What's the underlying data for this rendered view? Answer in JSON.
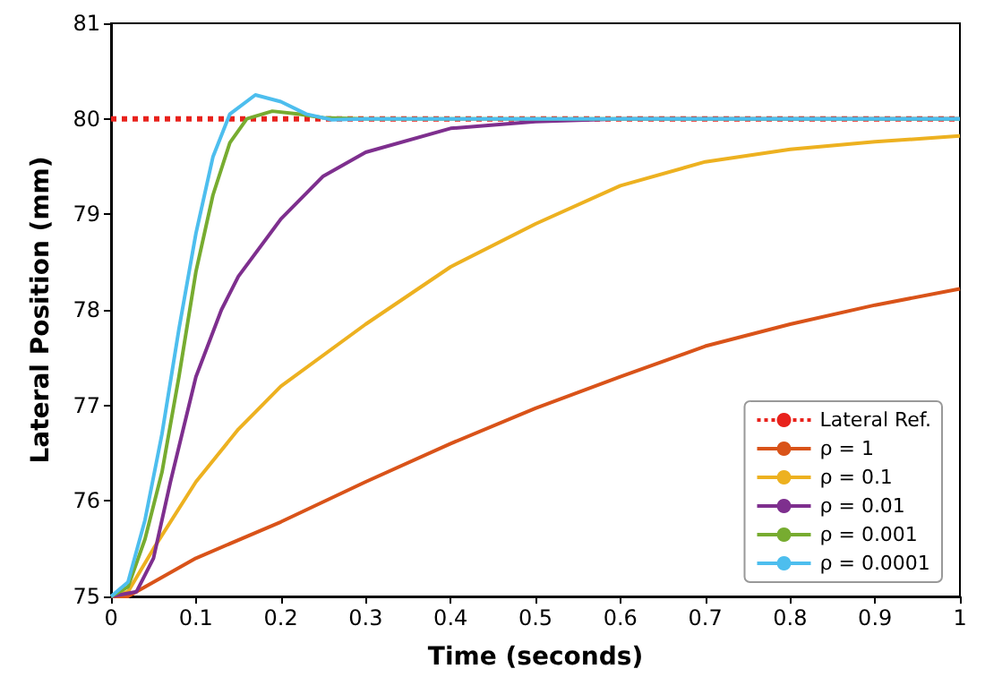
{
  "chart_data": {
    "type": "line",
    "xlabel": "Time (seconds)",
    "ylabel": "Lateral Position (mm)",
    "xlim": [
      0,
      1
    ],
    "ylim": [
      75,
      81
    ],
    "xticks": [
      0,
      0.1,
      0.2,
      0.3,
      0.4,
      0.5,
      0.6,
      0.7,
      0.8,
      0.9,
      1
    ],
    "yticks": [
      75,
      76,
      77,
      78,
      79,
      80,
      81
    ],
    "grid": false,
    "legend": "bottom right",
    "marker": "none",
    "series": [
      {
        "name": "Lateral Ref.",
        "color": "#e8221c",
        "line_style": "dotted",
        "x": [
          0,
          1
        ],
        "values": [
          80,
          80
        ]
      },
      {
        "name": "ρ = 1",
        "color": "#d95319",
        "x": [
          0,
          0.02,
          0.05,
          0.1,
          0.2,
          0.3,
          0.4,
          0.5,
          0.6,
          0.7,
          0.8,
          0.9,
          1
        ],
        "values": [
          75,
          75,
          75.15,
          75.4,
          75.78,
          76.2,
          76.6,
          76.97,
          77.3,
          77.62,
          77.85,
          78.05,
          78.22
        ]
      },
      {
        "name": "ρ = 0.1",
        "color": "#edb120",
        "x": [
          0,
          0.02,
          0.05,
          0.1,
          0.15,
          0.2,
          0.3,
          0.4,
          0.5,
          0.6,
          0.7,
          0.8,
          0.9,
          1
        ],
        "values": [
          75,
          75.05,
          75.5,
          76.2,
          76.75,
          77.2,
          77.85,
          78.45,
          78.9,
          79.3,
          79.55,
          79.68,
          79.76,
          79.82
        ]
      },
      {
        "name": "ρ = 0.01",
        "color": "#7e2f8e",
        "x": [
          0,
          0.03,
          0.05,
          0.07,
          0.1,
          0.13,
          0.15,
          0.2,
          0.25,
          0.3,
          0.4,
          0.5,
          0.6,
          1
        ],
        "values": [
          75,
          75.05,
          75.4,
          76.2,
          77.3,
          78,
          78.35,
          78.95,
          79.4,
          79.65,
          79.9,
          79.97,
          80,
          80
        ]
      },
      {
        "name": "ρ = 0.001",
        "color": "#77ac30",
        "x": [
          0,
          0.02,
          0.04,
          0.06,
          0.08,
          0.1,
          0.12,
          0.14,
          0.16,
          0.19,
          0.22,
          0.25,
          0.3,
          1
        ],
        "values": [
          75,
          75.1,
          75.6,
          76.3,
          77.3,
          78.4,
          79.2,
          79.75,
          80,
          80.08,
          80.05,
          80.01,
          80,
          80
        ]
      },
      {
        "name": "ρ = 0.0001",
        "color": "#4dbeee",
        "x": [
          0,
          0.02,
          0.04,
          0.06,
          0.08,
          0.1,
          0.12,
          0.14,
          0.17,
          0.2,
          0.23,
          0.26,
          0.3,
          1
        ],
        "values": [
          75,
          75.15,
          75.8,
          76.7,
          77.8,
          78.8,
          79.6,
          80.05,
          80.25,
          80.18,
          80.05,
          79.99,
          80,
          80
        ]
      }
    ]
  }
}
